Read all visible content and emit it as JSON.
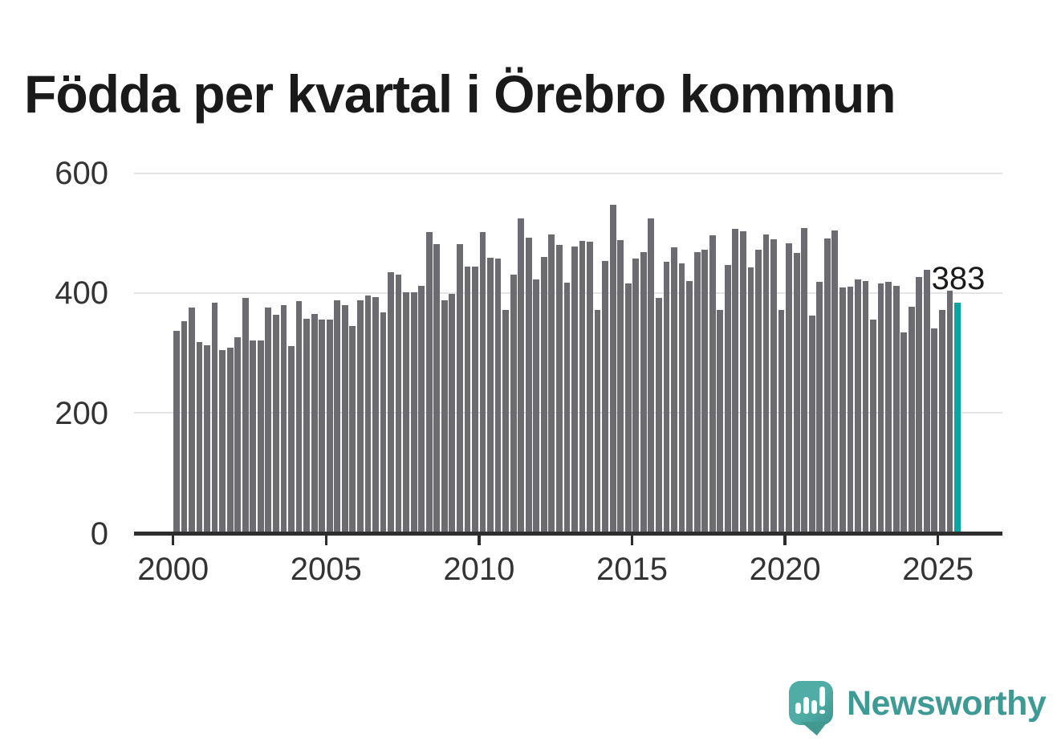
{
  "title": "Födda per kvartal i Örebro kommun",
  "chart_data": {
    "type": "bar",
    "title": "Födda per kvartal i Örebro kommun",
    "ylabel": "",
    "xlabel": "",
    "frequency": "quarterly",
    "start_period": "2000-Q1",
    "end_period": "2025-Q3",
    "ylim": [
      0,
      600
    ],
    "grid": "horizontal",
    "y_tick_labels": [
      "0",
      "200",
      "400",
      "600"
    ],
    "x_tick_labels": [
      "2000",
      "2005",
      "2010",
      "2015",
      "2020",
      "2025"
    ],
    "bar_color": "#6b6b71",
    "values": [
      336,
      352,
      375,
      317,
      312,
      383,
      303,
      307,
      325,
      390,
      320,
      319,
      374,
      362,
      378,
      310,
      385,
      356,
      364,
      354,
      355,
      386,
      378,
      344,
      386,
      394,
      392,
      366,
      433,
      429,
      400,
      400,
      411,
      501,
      480,
      386,
      398,
      481,
      443,
      443,
      501,
      458,
      457,
      370,
      430,
      523,
      491,
      422,
      459,
      497,
      479,
      416,
      477,
      486,
      484,
      370,
      452,
      546,
      487,
      415,
      456,
      467,
      523,
      390,
      451,
      475,
      448,
      419,
      467,
      471,
      495,
      370,
      446,
      506,
      502,
      442,
      471,
      497,
      489,
      370,
      482,
      466,
      508,
      361,
      417,
      490,
      504,
      408,
      410,
      422,
      419,
      354,
      415,
      418,
      411,
      333,
      376,
      426,
      438,
      339,
      370,
      403,
      383
    ],
    "highlight": {
      "index": 102,
      "period": "2025-Q3",
      "value": 383,
      "label": "383",
      "color": "#0aa5a3"
    }
  },
  "footer": {
    "brand": "Newsworthy"
  },
  "colors": {
    "background": "#ffffff",
    "bar": "#6b6b71",
    "highlight": "#0aa5a3",
    "gridline": "#e4e4e4",
    "axis": "#2d2d2d",
    "tick_label": "#333333",
    "title_text": "#1a1a1a",
    "brand_teal": "#3e9a94",
    "logo_bubble": "#4aa8a1"
  }
}
